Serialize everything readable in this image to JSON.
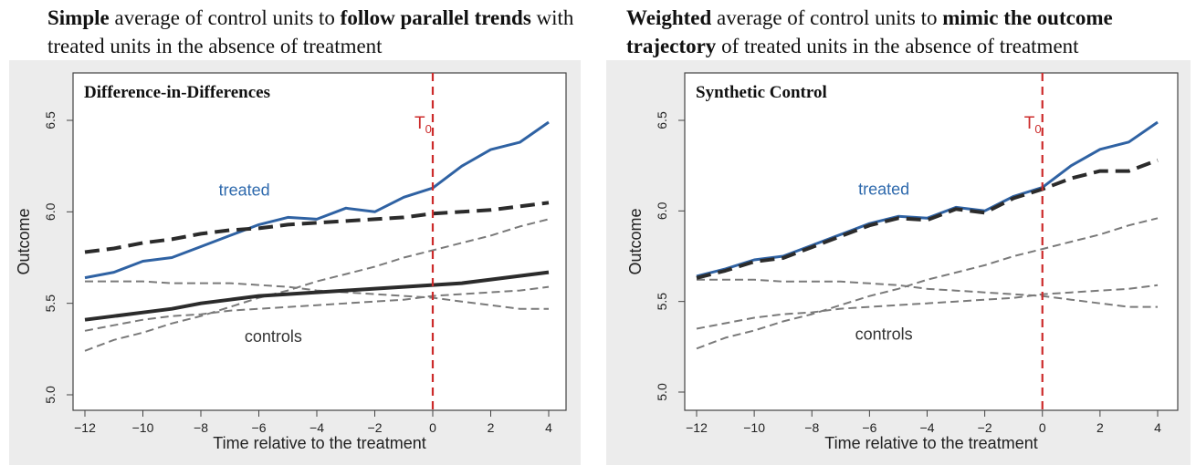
{
  "captions": {
    "left": {
      "bold1": "Simple",
      "text1": " average of control units to ",
      "bold2": "follow parallel trends",
      "text2": " with treated units  in the absence of treatment"
    },
    "right": {
      "bold1": "Weighted",
      "text1": " average of control units to ",
      "bold2": "mimic the outcome trajectory",
      "text2": " of treated units  in the absence of treatment"
    }
  },
  "chart_data": [
    {
      "type": "line",
      "title": "Difference-in-Differences",
      "xlabel": "Time relative to the treatment",
      "ylabel": "Outcome",
      "xlim": [
        -12,
        4
      ],
      "ylim": [
        5.0,
        6.5
      ],
      "xticks": [
        -12,
        -10,
        -8,
        -6,
        -4,
        -2,
        0,
        2,
        4
      ],
      "yticks": [
        5.0,
        5.5,
        6.0,
        6.5
      ],
      "vline": {
        "x": 0,
        "label": "T",
        "subscript": "0",
        "color": "#cc2b2b"
      },
      "annotations": [
        {
          "text": "treated",
          "x": -6.5,
          "y": 6.09,
          "color": "#2f6aad"
        },
        {
          "text": "controls",
          "x": -5.5,
          "y": 5.29,
          "color": "#333333"
        }
      ],
      "x": [
        -12,
        -11,
        -10,
        -9,
        -8,
        -7,
        -6,
        -5,
        -4,
        -3,
        -2,
        -1,
        0,
        1,
        2,
        3,
        4
      ],
      "series": [
        {
          "role": "treated",
          "color": "#2f62a3",
          "style": "solid",
          "width": 3,
          "values": [
            5.64,
            5.67,
            5.73,
            5.75,
            5.81,
            5.87,
            5.93,
            5.97,
            5.96,
            6.02,
            6.0,
            6.08,
            6.13,
            6.25,
            6.34,
            6.38,
            6.49
          ]
        },
        {
          "role": "counterfactual",
          "color": "#2b2b2b",
          "style": "dashed",
          "width": 4,
          "values": [
            5.78,
            5.8,
            5.83,
            5.85,
            5.88,
            5.9,
            5.91,
            5.93,
            5.94,
            5.95,
            5.96,
            5.97,
            5.99,
            6.0,
            6.01,
            6.03,
            6.05
          ]
        },
        {
          "role": "controls-average",
          "color": "#2b2b2b",
          "style": "solid",
          "width": 4,
          "values": [
            5.41,
            5.43,
            5.45,
            5.47,
            5.5,
            5.52,
            5.54,
            5.55,
            5.56,
            5.57,
            5.58,
            5.59,
            5.6,
            5.61,
            5.63,
            5.65,
            5.67
          ]
        },
        {
          "role": "control",
          "color": "#7a7a7a",
          "style": "dashed",
          "width": 2,
          "values": [
            5.62,
            5.62,
            5.62,
            5.61,
            5.61,
            5.61,
            5.6,
            5.59,
            5.57,
            5.56,
            5.55,
            5.54,
            5.53,
            5.51,
            5.49,
            5.47,
            5.47
          ]
        },
        {
          "role": "control",
          "color": "#7a7a7a",
          "style": "dashed",
          "width": 2,
          "values": [
            5.24,
            5.3,
            5.34,
            5.39,
            5.43,
            5.48,
            5.53,
            5.57,
            5.62,
            5.66,
            5.7,
            5.75,
            5.79,
            5.83,
            5.87,
            5.92,
            5.96
          ]
        },
        {
          "role": "control",
          "color": "#7a7a7a",
          "style": "dashed",
          "width": 2,
          "values": [
            5.35,
            5.38,
            5.41,
            5.43,
            5.44,
            5.46,
            5.47,
            5.48,
            5.49,
            5.5,
            5.51,
            5.52,
            5.54,
            5.55,
            5.56,
            5.57,
            5.59
          ]
        }
      ]
    },
    {
      "type": "line",
      "title": "Synthetic Control",
      "xlabel": "Time relative to the treatment",
      "ylabel": "Outcome",
      "xlim": [
        -12,
        4
      ],
      "ylim": [
        5.0,
        6.5
      ],
      "xticks": [
        -12,
        -10,
        -8,
        -6,
        -4,
        -2,
        0,
        2,
        4
      ],
      "yticks": [
        5.0,
        5.5,
        6.0,
        6.5
      ],
      "vline": {
        "x": 0,
        "label": "T",
        "subscript": "0",
        "color": "#cc2b2b"
      },
      "annotations": [
        {
          "text": "treated",
          "x": -5.5,
          "y": 6.09,
          "color": "#2f6aad"
        },
        {
          "text": "controls",
          "x": -5.5,
          "y": 5.29,
          "color": "#333333"
        }
      ],
      "x": [
        -12,
        -11,
        -10,
        -9,
        -8,
        -7,
        -6,
        -5,
        -4,
        -3,
        -2,
        -1,
        0,
        1,
        2,
        3,
        4
      ],
      "series": [
        {
          "role": "treated",
          "color": "#2f62a3",
          "style": "solid",
          "width": 3,
          "values": [
            5.64,
            5.68,
            5.73,
            5.75,
            5.81,
            5.87,
            5.93,
            5.97,
            5.96,
            6.02,
            6.0,
            6.08,
            6.13,
            6.25,
            6.34,
            6.38,
            6.49
          ]
        },
        {
          "role": "synthetic",
          "color": "#2b2b2b",
          "style": "dashed",
          "width": 4,
          "values": [
            5.63,
            5.67,
            5.72,
            5.74,
            5.8,
            5.86,
            5.92,
            5.96,
            5.95,
            6.01,
            5.99,
            6.07,
            6.12,
            6.18,
            6.22,
            6.22,
            6.28
          ]
        },
        {
          "role": "control",
          "color": "#7a7a7a",
          "style": "dashed",
          "width": 2,
          "values": [
            5.62,
            5.62,
            5.62,
            5.61,
            5.61,
            5.61,
            5.6,
            5.59,
            5.57,
            5.56,
            5.55,
            5.54,
            5.53,
            5.51,
            5.49,
            5.47,
            5.47
          ]
        },
        {
          "role": "control",
          "color": "#7a7a7a",
          "style": "dashed",
          "width": 2,
          "values": [
            5.24,
            5.3,
            5.34,
            5.39,
            5.43,
            5.48,
            5.53,
            5.57,
            5.62,
            5.66,
            5.7,
            5.75,
            5.79,
            5.83,
            5.87,
            5.92,
            5.96
          ]
        },
        {
          "role": "control",
          "color": "#7a7a7a",
          "style": "dashed",
          "width": 2,
          "values": [
            5.35,
            5.38,
            5.41,
            5.43,
            5.44,
            5.46,
            5.47,
            5.48,
            5.49,
            5.5,
            5.51,
            5.52,
            5.54,
            5.55,
            5.56,
            5.57,
            5.59
          ]
        }
      ]
    }
  ]
}
